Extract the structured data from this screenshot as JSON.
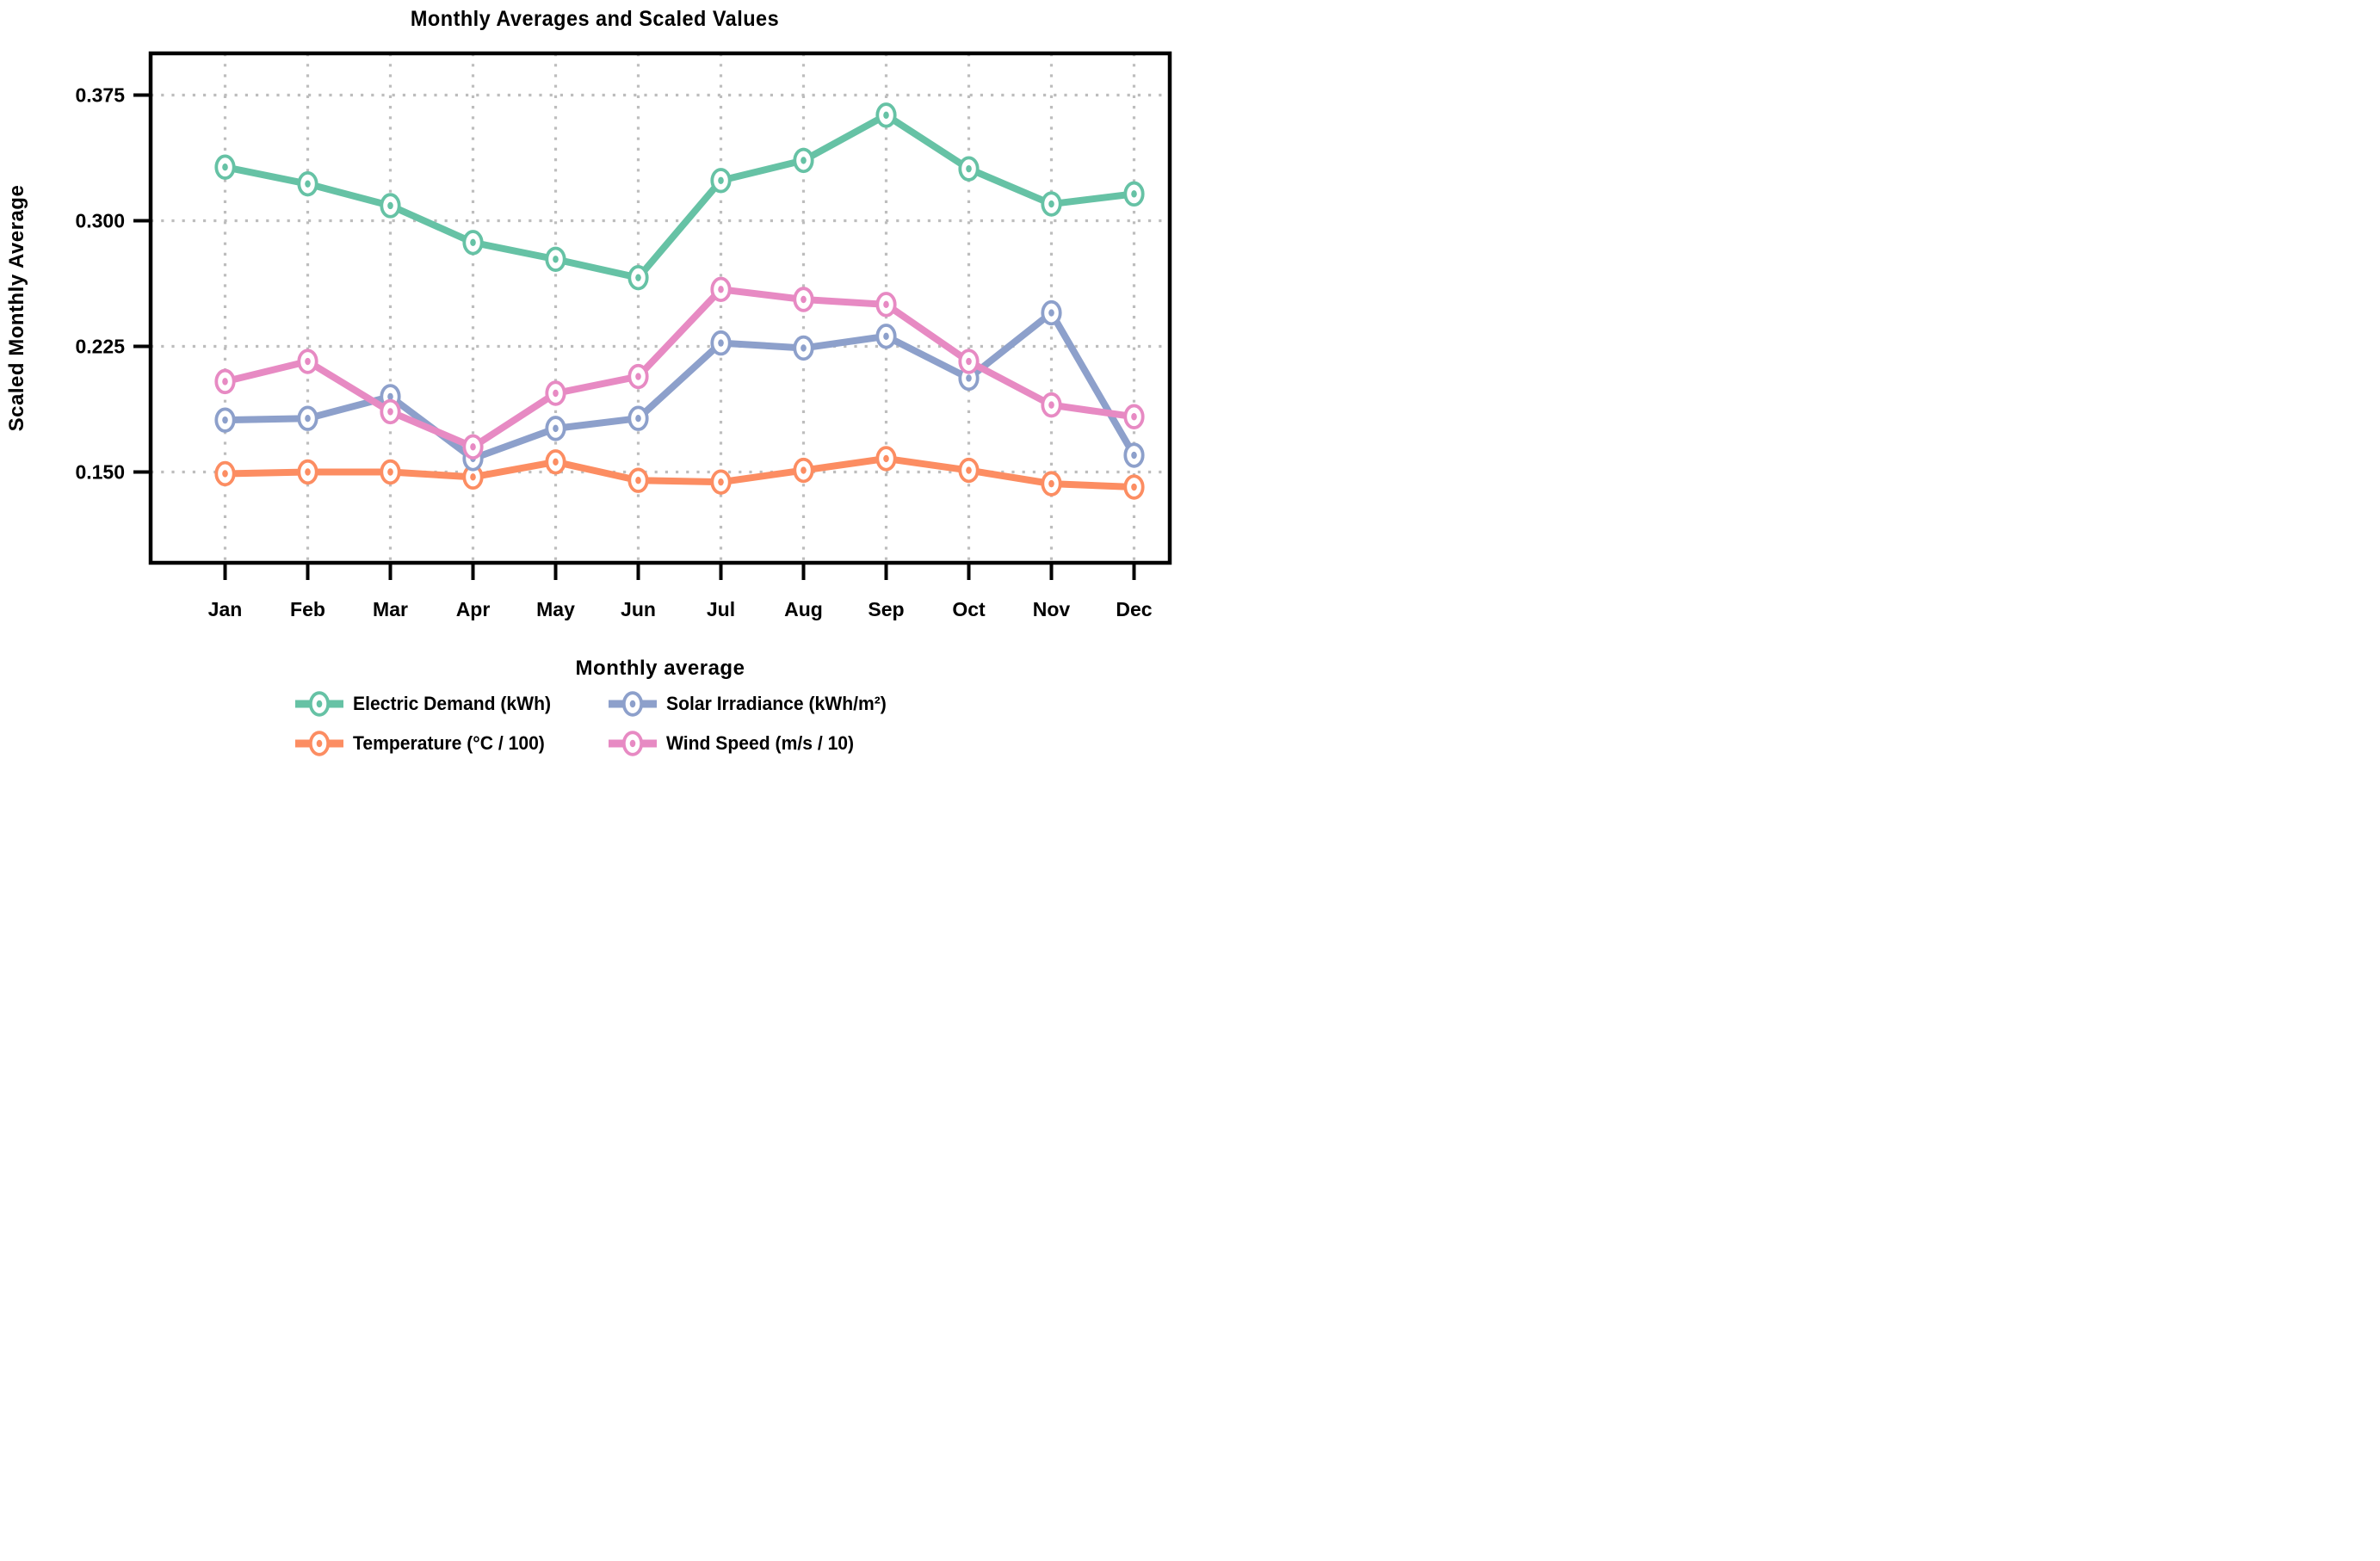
{
  "chart_data": {
    "type": "line",
    "title": "Monthly Averages and Scaled Values",
    "xlabel": "Monthly average",
    "ylabel": "Scaled Monthly Average",
    "categories": [
      "Jan",
      "Feb",
      "Mar",
      "Apr",
      "May",
      "Jun",
      "Jul",
      "Aug",
      "Sep",
      "Oct",
      "Nov",
      "Dec"
    ],
    "yticks": [
      0.15,
      0.225,
      0.3,
      0.375
    ],
    "ytick_labels": [
      "0.150",
      "0.225",
      "0.300",
      "0.375"
    ],
    "ylim": [
      0.095,
      0.4
    ],
    "grid": true,
    "grid_style": "dotted",
    "legend_position": "bottom",
    "marker": "open-circle-dot",
    "series": [
      {
        "name": "Electric Demand (kWh)",
        "color": "#66C2A5",
        "values": [
          0.332,
          0.322,
          0.309,
          0.287,
          0.277,
          0.266,
          0.324,
          0.336,
          0.363,
          0.331,
          0.31,
          0.316
        ]
      },
      {
        "name": "Temperature (°C / 100)",
        "color": "#FC8D62",
        "values": [
          0.149,
          0.15,
          0.15,
          0.147,
          0.156,
          0.145,
          0.144,
          0.151,
          0.158,
          0.151,
          0.143,
          0.141
        ]
      },
      {
        "name": "Solar Irradiance (kWh/m²)",
        "color": "#8DA0CB",
        "values": [
          0.181,
          0.182,
          0.195,
          0.158,
          0.176,
          0.182,
          0.227,
          0.224,
          0.231,
          0.206,
          0.245,
          0.16
        ]
      },
      {
        "name": "Wind Speed (m/s / 10)",
        "color": "#E78AC3",
        "values": [
          0.204,
          0.216,
          0.186,
          0.165,
          0.197,
          0.207,
          0.259,
          0.253,
          0.25,
          0.216,
          0.19,
          0.183
        ]
      }
    ],
    "colors": {
      "grid": "#BDBDBD",
      "axis": "#000000",
      "background": "#FFFFFF"
    },
    "legend_column_order": [
      [
        0,
        2
      ],
      [
        1,
        3
      ]
    ]
  }
}
